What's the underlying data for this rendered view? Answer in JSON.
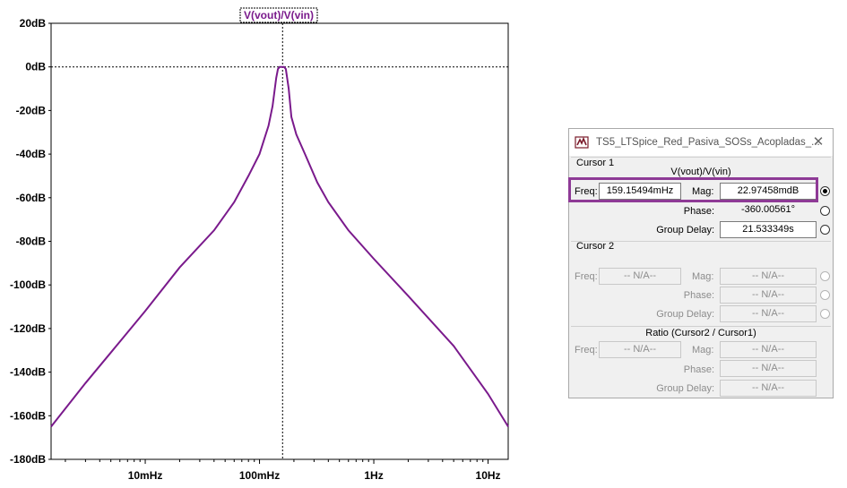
{
  "chart_data": {
    "type": "line",
    "title": "V(vout)/V(vin)",
    "xlabel": "",
    "ylabel": "",
    "x_scale": "log",
    "xlim": [
      0.0015,
      15
    ],
    "ylim": [
      -180,
      20
    ],
    "yticks": [
      "20dB",
      "0dB",
      "-20dB",
      "-40dB",
      "-60dB",
      "-80dB",
      "-100dB",
      "-120dB",
      "-140dB",
      "-160dB",
      "-180dB"
    ],
    "xticks": [
      "10mHz",
      "100mHz",
      "1Hz",
      "10Hz"
    ],
    "cursor_x": 0.159154,
    "grid": false,
    "series": [
      {
        "name": "V(vout)/V(vin)",
        "color": "#7a1a8c",
        "x": [
          0.0015,
          0.003,
          0.005,
          0.01,
          0.02,
          0.04,
          0.06,
          0.08,
          0.1,
          0.12,
          0.13,
          0.14,
          0.145,
          0.15,
          0.155,
          0.159,
          0.164,
          0.17,
          0.18,
          0.19,
          0.21,
          0.25,
          0.32,
          0.4,
          0.6,
          1,
          2,
          5,
          10,
          15
        ],
        "y": [
          -165,
          -145,
          -131,
          -112,
          -92,
          -75,
          -62,
          -50,
          -40,
          -27,
          -18,
          -5,
          -1,
          0,
          0,
          0,
          0,
          -1,
          -10,
          -23,
          -31,
          -40,
          -53,
          -62,
          -75,
          -88,
          -105,
          -128,
          -150,
          -165
        ]
      }
    ]
  },
  "dialog": {
    "title": "TS5_LTSpice_Red_Pasiva_SOSs_Acopladas_...",
    "close_glyph": "✕",
    "cursor1": {
      "group_label": "Cursor 1",
      "trace": "V(vout)/V(vin)",
      "freq_label": "Freq:",
      "freq_value": "159.15494mHz",
      "mag_label": "Mag:",
      "mag_value": "22.97458mdB",
      "phase_label": "Phase:",
      "phase_value": "-360.00561°",
      "delay_label": "Group Delay:",
      "delay_value": "21.533349s"
    },
    "cursor2": {
      "group_label": "Cursor 2",
      "freq_label": "Freq:",
      "freq_value": "-- N/A--",
      "mag_label": "Mag:",
      "mag_value": "-- N/A--",
      "phase_label": "Phase:",
      "phase_value": "-- N/A--",
      "delay_label": "Group Delay:",
      "delay_value": "-- N/A--"
    },
    "ratio": {
      "group_label": "Ratio (Cursor2 / Cursor1)",
      "freq_label": "Freq:",
      "freq_value": "-- N/A--",
      "mag_label": "Mag:",
      "mag_value": "-- N/A--",
      "phase_label": "Phase:",
      "phase_value": "-- N/A--",
      "delay_label": "Group Delay:",
      "delay_value": "-- N/A--"
    }
  },
  "colors": {
    "trace": "#7a1a8c",
    "highlight": "#8e3a96"
  }
}
